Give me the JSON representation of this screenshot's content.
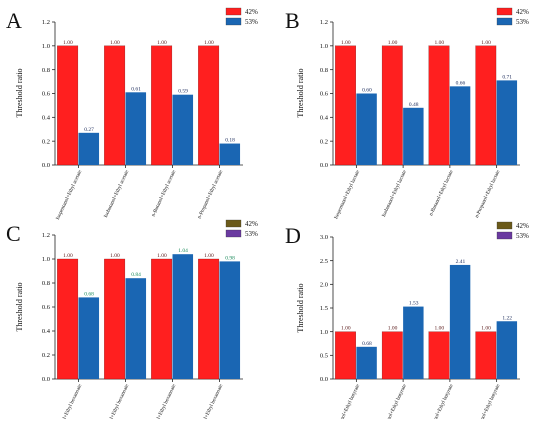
{
  "chart_data": [
    {
      "panel": "A",
      "type": "bar",
      "ylabel": "Threshold ratio",
      "ylim": [
        0,
        1.2
      ],
      "yticks": [
        "0.0",
        "0.2",
        "0.4",
        "0.6",
        "0.8",
        "1.0",
        "1.2"
      ],
      "categories": [
        "Isopentanol+Ethyl acetate",
        "Isobutanol+Ethyl acetate",
        "n-Butanol+Ethyl acetate",
        "n-Propanol+Ethyl acetate"
      ],
      "series": [
        {
          "name": "42%",
          "values": [
            1.0,
            1.0,
            1.0,
            1.0
          ],
          "labels": [
            "1.00",
            "1.00",
            "1.00",
            "1.00"
          ]
        },
        {
          "name": "53%",
          "values": [
            0.27,
            0.61,
            0.59,
            0.18
          ],
          "labels": [
            "0.27",
            "0.61",
            "0.59",
            "0.18"
          ]
        }
      ],
      "colors": [
        "#ff1f1f",
        "#1a66b3"
      ],
      "label_colors": [
        "#5a1a1a",
        "#1a2a5a"
      ],
      "legend_position": "top-right"
    },
    {
      "panel": "B",
      "type": "bar",
      "ylabel": "Threshold ratio",
      "ylim": [
        0,
        1.2
      ],
      "yticks": [
        "0.0",
        "0.2",
        "0.4",
        "0.6",
        "0.8",
        "1.0",
        "1.2"
      ],
      "categories": [
        "Isopentanol+Ethyl lactate",
        "Isobutanol+Ethyl lactate",
        "n-Butanol+Ethyl lactate",
        "n-Propanol+Ethyl lactate"
      ],
      "series": [
        {
          "name": "42%",
          "values": [
            1.0,
            1.0,
            1.0,
            1.0
          ],
          "labels": [
            "1.00",
            "1.00",
            "1.00",
            "1.00"
          ]
        },
        {
          "name": "53%",
          "values": [
            0.6,
            0.48,
            0.66,
            0.71
          ],
          "labels": [
            "0.60",
            "0.48",
            "0.66",
            "0.71"
          ]
        }
      ],
      "colors": [
        "#ff1f1f",
        "#1a66b3"
      ],
      "label_colors": [
        "#5a1a1a",
        "#1a2a5a"
      ],
      "legend_position": "top-right"
    },
    {
      "panel": "C",
      "type": "bar",
      "ylabel": "Threshold ratio",
      "ylim": [
        0,
        1.2
      ],
      "yticks": [
        "0.0",
        "0.2",
        "0.4",
        "0.6",
        "0.8",
        "1.0",
        "1.2"
      ],
      "categories": [
        "Isopentanol+Ethyl hexanoate",
        "Isobutanol+Ethyl hexanoate",
        "n-Butanol+Ethyl hexanoate",
        "n-Propanol+Ethyl hexanoate"
      ],
      "series": [
        {
          "name": "42%",
          "values": [
            1.0,
            1.0,
            1.0,
            1.0
          ],
          "labels": [
            "1.00",
            "1.00",
            "1.00",
            "1.00"
          ]
        },
        {
          "name": "53%",
          "values": [
            0.68,
            0.84,
            1.04,
            0.98
          ],
          "labels": [
            "0.68",
            "0.84",
            "1.04",
            "0.98"
          ]
        }
      ],
      "colors": [
        "#ff1f1f",
        "#1a66b3"
      ],
      "label_colors": [
        "#5a1a1a",
        "#1a8a5a"
      ],
      "legend_swatches": [
        "#6b5a1a",
        "#6a3aa0"
      ],
      "legend_position": "top-right"
    },
    {
      "panel": "D",
      "type": "bar",
      "ylabel": "Threshold ratio",
      "ylim": [
        0,
        3.0
      ],
      "yticks": [
        "0.0",
        "0.5",
        "1.0",
        "1.5",
        "2.0",
        "2.5",
        "3.0"
      ],
      "categories": [
        "Isopentanol+Ethyl butyrate",
        "Isobutanol+Ethyl butyrate",
        "n-Butanol+Ethyl butyrate",
        "n-Propanol+Ethyl butyrate"
      ],
      "series": [
        {
          "name": "42%",
          "values": [
            1.0,
            1.0,
            1.0,
            1.0
          ],
          "labels": [
            "1.00",
            "1.00",
            "1.00",
            "1.00"
          ]
        },
        {
          "name": "53%",
          "values": [
            0.68,
            1.53,
            2.41,
            1.22
          ],
          "labels": [
            "0.68",
            "1.53",
            "2.41",
            "1.22"
          ]
        }
      ],
      "colors": [
        "#ff1f1f",
        "#1a66b3"
      ],
      "label_colors": [
        "#5a1a1a",
        "#1a2a5a"
      ],
      "legend_swatches": [
        "#6b5a1a",
        "#6a3aa0"
      ],
      "legend_position": "top-right"
    }
  ]
}
